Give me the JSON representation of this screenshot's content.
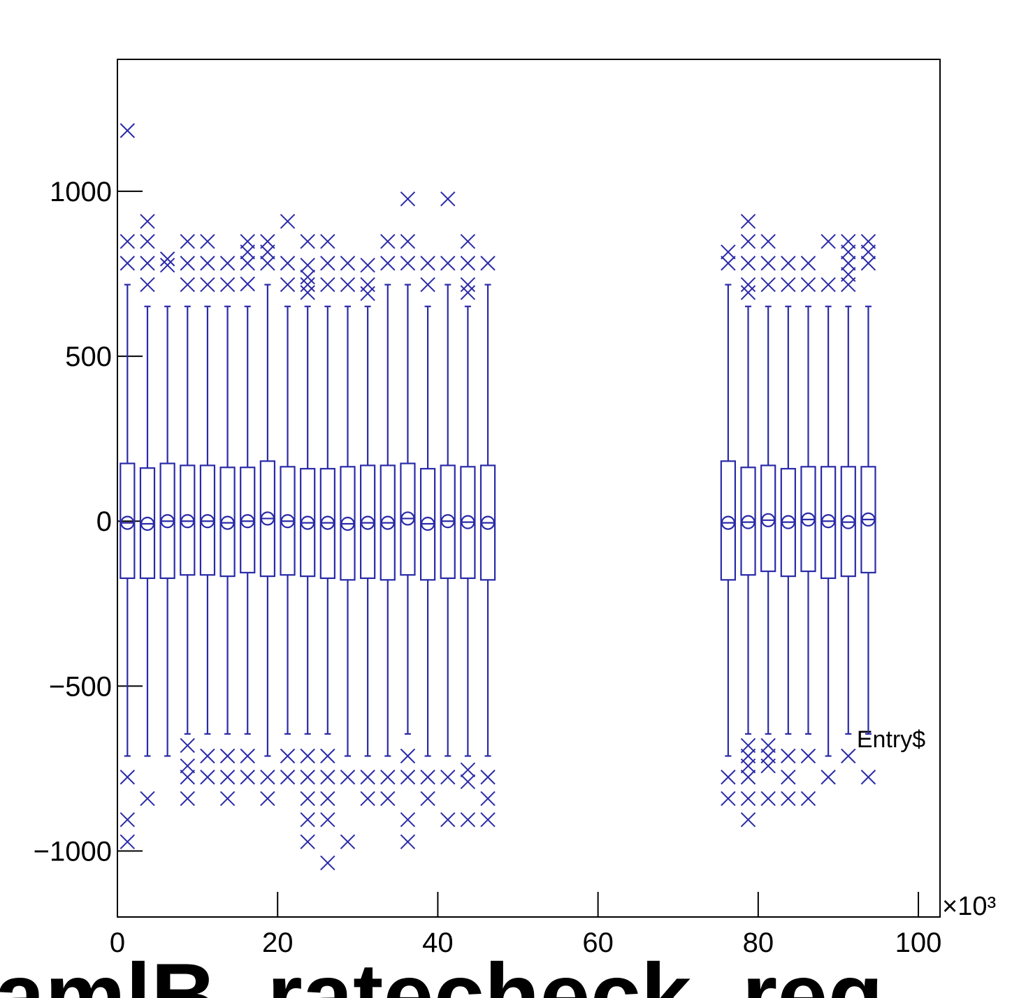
{
  "chart_data": {
    "type": "box",
    "x_label": "Entry$",
    "x_multiplier": "×10³",
    "annotation": "amlB_ratecheck_req",
    "color": "#2a2aa8",
    "xlim": [
      0,
      102.7
    ],
    "xticks": [
      0,
      20,
      40,
      60,
      80,
      100
    ],
    "ylim": [
      -1200,
      1400
    ],
    "yticks": [
      {
        "value": -1000,
        "label": "−1000"
      },
      {
        "value": -500,
        "label": "−500"
      },
      0,
      500,
      1000
    ],
    "boxes": [
      {
        "x": 1.25,
        "low": -712,
        "q1": -173,
        "median": -5,
        "q3": 175,
        "high": 717,
        "outliers": [
          1184,
          848,
          782,
          -776,
          -905,
          -972
        ]
      },
      {
        "x": 3.75,
        "low": -712,
        "q1": -173,
        "median": -8,
        "q3": 161,
        "high": 651,
        "outliers": [
          909,
          848,
          782,
          717,
          -841
        ]
      },
      {
        "x": 6.25,
        "low": -712,
        "q1": -173,
        "median": 0,
        "q3": 175,
        "high": 651,
        "outliers": [
          795,
          776
        ]
      },
      {
        "x": 8.75,
        "low": -645,
        "q1": -163,
        "median": 0,
        "q3": 169,
        "high": 651,
        "outliers": [
          848,
          782,
          717,
          -680,
          -742,
          -776,
          -841
        ]
      },
      {
        "x": 11.25,
        "low": -645,
        "q1": -163,
        "median": 0,
        "q3": 169,
        "high": 651,
        "outliers": [
          848,
          782,
          717,
          -712,
          -776
        ]
      },
      {
        "x": 13.75,
        "low": -645,
        "q1": -167,
        "median": -5,
        "q3": 163,
        "high": 651,
        "outliers": [
          782,
          717,
          -712,
          -776,
          -841
        ]
      },
      {
        "x": 16.25,
        "low": -645,
        "q1": -156,
        "median": 0,
        "q3": 163,
        "high": 651,
        "outliers": [
          848,
          816,
          782,
          719,
          -712,
          -776
        ]
      },
      {
        "x": 18.75,
        "low": -712,
        "q1": -167,
        "median": 8,
        "q3": 182,
        "high": 717,
        "outliers": [
          848,
          816,
          782,
          -776,
          -841
        ]
      },
      {
        "x": 21.25,
        "low": -645,
        "q1": -163,
        "median": 0,
        "q3": 165,
        "high": 651,
        "outliers": [
          909,
          782,
          717,
          -712,
          -776
        ]
      },
      {
        "x": 23.75,
        "low": -645,
        "q1": -167,
        "median": -5,
        "q3": 159,
        "high": 651,
        "outliers": [
          848,
          776,
          740,
          717,
          693,
          -712,
          -776,
          -841,
          -905,
          -972
        ]
      },
      {
        "x": 26.25,
        "low": -645,
        "q1": -173,
        "median": -5,
        "q3": 159,
        "high": 651,
        "outliers": [
          848,
          782,
          717,
          -712,
          -776,
          -841,
          -905,
          -1036
        ]
      },
      {
        "x": 28.75,
        "low": -712,
        "q1": -178,
        "median": -8,
        "q3": 165,
        "high": 651,
        "outliers": [
          782,
          717,
          -776,
          -972
        ]
      },
      {
        "x": 31.25,
        "low": -712,
        "q1": -173,
        "median": -5,
        "q3": 169,
        "high": 651,
        "outliers": [
          776,
          717,
          690,
          -776,
          -841
        ]
      },
      {
        "x": 33.75,
        "low": -712,
        "q1": -178,
        "median": -5,
        "q3": 169,
        "high": 717,
        "outliers": [
          848,
          782,
          -776,
          -841
        ]
      },
      {
        "x": 36.25,
        "low": -645,
        "q1": -163,
        "median": 8,
        "q3": 175,
        "high": 717,
        "outliers": [
          977,
          848,
          782,
          -712,
          -776,
          -905,
          -972
        ]
      },
      {
        "x": 38.75,
        "low": -712,
        "q1": -178,
        "median": -8,
        "q3": 159,
        "high": 651,
        "outliers": [
          782,
          717,
          -776,
          -841
        ]
      },
      {
        "x": 41.25,
        "low": -712,
        "q1": -173,
        "median": 0,
        "q3": 169,
        "high": 717,
        "outliers": [
          977,
          782,
          -776,
          -905
        ]
      },
      {
        "x": 43.75,
        "low": -712,
        "q1": -173,
        "median": -3,
        "q3": 165,
        "high": 651,
        "outliers": [
          848,
          782,
          717,
          693,
          -754,
          -790,
          -905
        ]
      },
      {
        "x": 46.25,
        "low": -712,
        "q1": -178,
        "median": -5,
        "q3": 169,
        "high": 717,
        "outliers": [
          782,
          -776,
          -841,
          -905
        ]
      },
      {
        "x": 76.25,
        "low": -712,
        "q1": -178,
        "median": -5,
        "q3": 182,
        "high": 717,
        "outliers": [
          816,
          782,
          -776,
          -841
        ]
      },
      {
        "x": 78.75,
        "low": -645,
        "q1": -163,
        "median": -3,
        "q3": 163,
        "high": 651,
        "outliers": [
          909,
          848,
          782,
          717,
          693,
          -680,
          -712,
          -742,
          -776,
          -841,
          -905
        ]
      },
      {
        "x": 81.25,
        "low": -645,
        "q1": -152,
        "median": 3,
        "q3": 169,
        "high": 651,
        "outliers": [
          848,
          782,
          717,
          -680,
          -712,
          -742,
          -841
        ]
      },
      {
        "x": 83.75,
        "low": -645,
        "q1": -167,
        "median": -3,
        "q3": 159,
        "high": 651,
        "outliers": [
          782,
          717,
          -712,
          -776,
          -841
        ]
      },
      {
        "x": 86.25,
        "low": -645,
        "q1": -152,
        "median": 5,
        "q3": 165,
        "high": 651,
        "outliers": [
          782,
          717,
          -712,
          -841
        ]
      },
      {
        "x": 88.75,
        "low": -712,
        "q1": -173,
        "median": 0,
        "q3": 165,
        "high": 651,
        "outliers": [
          848,
          717,
          -776
        ]
      },
      {
        "x": 91.25,
        "low": -645,
        "q1": -167,
        "median": -3,
        "q3": 165,
        "high": 651,
        "outliers": [
          848,
          816,
          782,
          748,
          717,
          -712
        ]
      },
      {
        "x": 93.75,
        "low": -645,
        "q1": -156,
        "median": 5,
        "q3": 165,
        "high": 651,
        "outliers": [
          848,
          816,
          782,
          -776
        ]
      }
    ]
  }
}
